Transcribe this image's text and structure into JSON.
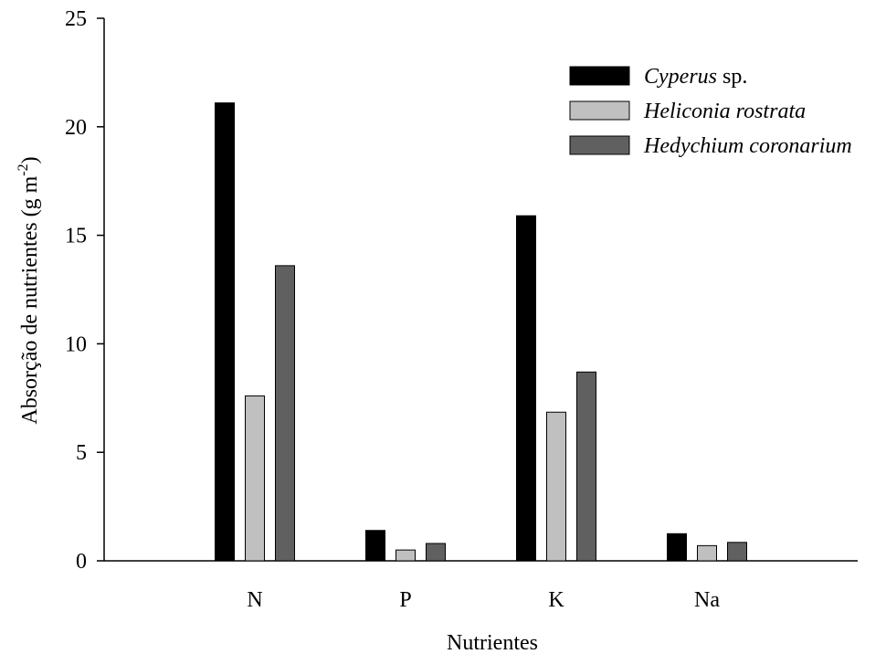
{
  "chart_data": {
    "type": "bar",
    "categories": [
      "N",
      "P",
      "K",
      "Na"
    ],
    "series": [
      {
        "name": "Cyperus sp.",
        "name_italic": "Cyperus",
        "name_plain": " sp.",
        "color": "#000000",
        "values": [
          21.1,
          1.4,
          15.9,
          1.25
        ]
      },
      {
        "name": "Heliconia rostrata",
        "name_italic": "Heliconia rostrata",
        "name_plain": "",
        "color": "#c0c0c0",
        "values": [
          7.6,
          0.5,
          6.85,
          0.7
        ]
      },
      {
        "name": "Hedychium coronarium",
        "name_italic": "Hedychium coronarium",
        "name_plain": "",
        "color": "#606060",
        "values": [
          13.6,
          0.8,
          8.7,
          0.85
        ]
      }
    ],
    "xlabel": "Nutrientes",
    "ylabel": {
      "main": "Absorção de nutrientes (g m",
      "sup": "-2",
      "end": ")"
    },
    "ylim": [
      0,
      25
    ],
    "yticks": [
      0,
      5,
      10,
      15,
      20,
      25
    ],
    "grid": false,
    "legend_position": "top-right"
  }
}
